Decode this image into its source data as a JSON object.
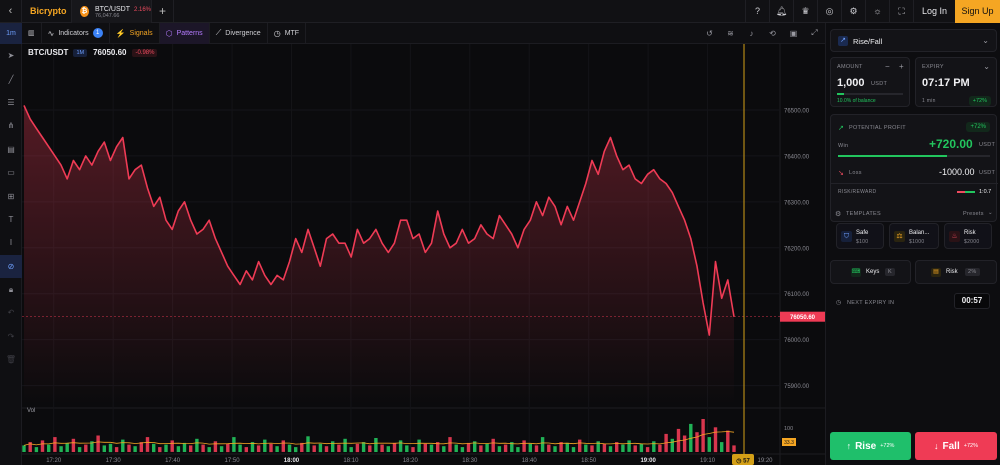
{
  "topbar": {
    "brand": "Bicrypto",
    "tab": {
      "symbol": "BTC/USDT",
      "change": "2.16%",
      "price": "76,047.66"
    },
    "login": "Log In",
    "signup": "Sign Up",
    "icons": [
      "help-icon",
      "notification-icon",
      "trophy-icon",
      "target-icon",
      "settings-icon",
      "theme-icon",
      "fullscreen-icon"
    ]
  },
  "toolbar": {
    "timeframe": "1m",
    "indicators": "Indicators",
    "indicators_count": "1",
    "signals": "Signals",
    "patterns": "Patterns",
    "divergence": "Divergence",
    "mtf": "MTF"
  },
  "chart": {
    "pair": "BTC/USDT",
    "timeframe_badge": "1M",
    "last_price": "76050.60",
    "change": "-0.98%",
    "current_price_label": "76050.60",
    "vol_label": "Vol",
    "vol_axis_label": "100",
    "vol_last_label": "33.3",
    "countdown": "57",
    "countdown_time": "19:20",
    "y_ticks": [
      {
        "label": "76500.00",
        "value": 76500
      },
      {
        "label": "76400.00",
        "value": 76400
      },
      {
        "label": "76300.00",
        "value": 76300
      },
      {
        "label": "76200.00",
        "value": 76200
      },
      {
        "label": "76100.00",
        "value": 76100
      },
      {
        "label": "76000.00",
        "value": 76000
      },
      {
        "label": "75900.00",
        "value": 75900
      }
    ],
    "x_ticks": [
      "17:20",
      "17:30",
      "17:40",
      "17:50",
      "18:00",
      "18:10",
      "18:20",
      "18:30",
      "18:40",
      "18:50",
      "19:00",
      "19:10"
    ],
    "bold_x_ticks": [
      "18:00",
      "19:00"
    ]
  },
  "chart_data": {
    "type": "line",
    "x_start": "17:15",
    "x_end": "19:20",
    "ylim": [
      75860,
      76600
    ],
    "series": [
      {
        "values": [
          76510,
          76480,
          76460,
          76440,
          76420,
          76400,
          76380,
          76350,
          76390,
          76370,
          76400,
          76380,
          76410,
          76430,
          76390,
          76420,
          76440,
          76350,
          76370,
          76380,
          76330,
          76290,
          76310,
          76260,
          76240,
          76280,
          76300,
          76260,
          76230,
          76240,
          76260,
          76220,
          76190,
          76160,
          76140,
          76120,
          76150,
          76130,
          76170,
          76140,
          76120,
          76140,
          76130,
          76170,
          76220,
          76190,
          76240,
          76200,
          76160,
          76220,
          76230,
          76210,
          76210,
          76180,
          76240,
          76210,
          76220,
          76240,
          76210,
          76190,
          76210,
          76260,
          76260,
          76220,
          76230,
          76190,
          76210,
          76280,
          76230,
          76200,
          76210,
          76240,
          76210,
          76220,
          76250,
          76230,
          76220,
          76270,
          76250,
          76230,
          76200,
          76240,
          76260,
          76300,
          76270,
          76310,
          76290,
          76250,
          76290,
          76260,
          76300,
          76340,
          76390,
          76360,
          76410,
          76440,
          76400,
          76370,
          76380,
          76350,
          76340,
          76360,
          76370,
          76350,
          76340,
          76320,
          76290,
          76260,
          76220,
          76160,
          76080,
          76010,
          76170,
          76090,
          76130,
          76050
        ]
      }
    ],
    "volume": [
      8,
      12,
      6,
      14,
      9,
      18,
      7,
      11,
      16,
      6,
      9,
      13,
      20,
      8,
      10,
      6,
      15,
      9,
      7,
      12,
      18,
      10,
      6,
      9,
      14,
      7,
      11,
      8,
      16,
      9,
      6,
      13,
      7,
      10,
      18,
      9,
      6,
      12,
      8,
      15,
      10,
      7,
      14,
      9,
      6,
      11,
      19,
      8,
      10,
      7,
      13,
      9,
      16,
      6,
      10,
      12,
      8,
      17,
      9,
      7,
      11,
      14,
      8,
      6,
      15,
      10,
      9,
      12,
      7,
      18,
      9,
      6,
      11,
      13,
      8,
      10,
      16,
      7,
      9,
      12,
      6,
      14,
      10,
      8,
      18,
      9,
      7,
      12,
      11,
      6,
      15,
      9,
      8,
      13,
      10,
      7,
      12,
      9,
      14,
      8,
      10,
      6,
      13,
      9,
      22,
      16,
      28,
      20,
      34,
      24,
      40,
      18,
      30,
      12,
      26,
      8
    ],
    "volume_up": [
      1,
      0,
      1,
      0,
      1,
      0,
      1,
      1,
      0,
      1,
      0,
      1,
      0,
      1,
      1,
      0,
      1,
      0,
      1,
      0,
      0,
      1,
      0,
      1,
      0,
      1,
      1,
      0,
      1,
      0,
      1,
      0,
      1,
      0,
      1,
      1,
      0,
      1,
      0,
      1,
      0,
      1,
      0,
      1,
      1,
      0,
      1,
      0,
      1,
      0,
      1,
      0,
      1,
      1,
      0,
      1,
      0,
      1,
      0,
      1,
      0,
      1,
      1,
      0,
      1,
      0,
      1,
      0,
      1,
      0,
      1,
      1,
      0,
      1,
      0,
      1,
      0,
      1,
      0,
      1,
      1,
      0,
      1,
      0,
      1,
      0,
      1,
      0,
      1,
      1,
      0,
      1,
      0,
      1,
      0,
      1,
      0,
      1,
      1,
      0,
      1,
      0,
      1,
      0,
      0,
      1,
      0,
      0,
      1,
      0,
      0,
      1,
      0,
      1,
      0,
      0
    ]
  },
  "panel": {
    "trade_type": "Rise/Fall",
    "amount_label": "AMOUNT",
    "amount_value": "1,000",
    "amount_unit": "USDT",
    "amount_note": "10.0% of balance",
    "expiry_label": "EXPIRY",
    "expiry_value": "07:17 PM",
    "expiry_note": "1 min",
    "expiry_payout": "+72%",
    "potential_label": "POTENTIAL PROFIT",
    "potential_pct": "+72%",
    "win_label": "Win",
    "win_value": "+720.00",
    "win_unit": "USDT",
    "loss_label": "Loss",
    "loss_value": "-1000.00",
    "loss_unit": "USDT",
    "rr_label": "RISK/REWARD",
    "rr_value": "1:0.7",
    "templates_label": "TEMPLATES",
    "presets_label": "Presets",
    "templates": [
      {
        "name": "Safe",
        "amount": "$100"
      },
      {
        "name": "Balan...",
        "amount": "$1000"
      },
      {
        "name": "Risk",
        "amount": "$2000"
      }
    ],
    "keys_label": "Keys",
    "keys_badge": "K",
    "risk_label": "Risk",
    "risk_badge": "2%",
    "next_expiry_label": "NEXT EXPIRY IN",
    "next_expiry_value": "00:57",
    "rise_label": "Rise",
    "rise_pct": "+72%",
    "fall_label": "Fall",
    "fall_pct": "+72%"
  }
}
